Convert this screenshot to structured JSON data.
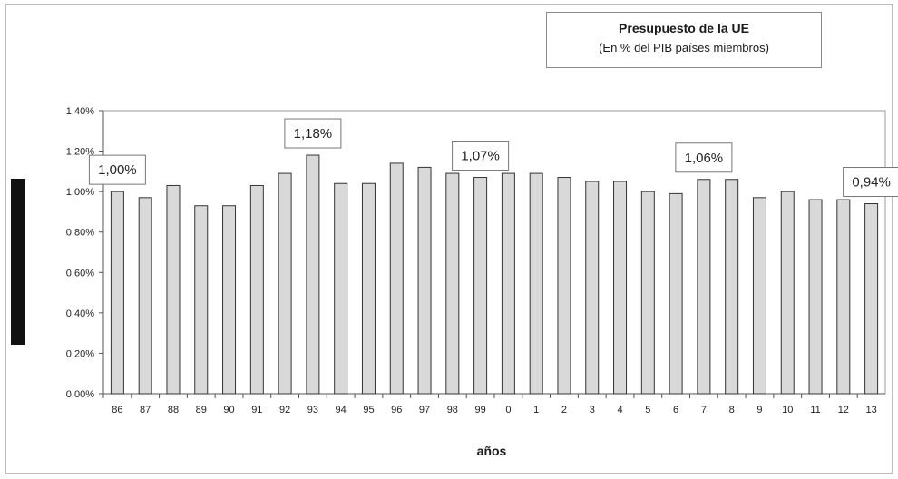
{
  "chart_data": {
    "type": "bar",
    "title": "Presupuesto de la UE",
    "subtitle": "(En % del PIB países miembros)",
    "xlabel": "años",
    "ylabel": "",
    "ylim": [
      0,
      1.4
    ],
    "yticks": [
      "0,00%",
      "0,20%",
      "0,40%",
      "0,60%",
      "0,80%",
      "1,00%",
      "1,20%",
      "1,40%"
    ],
    "grid": false,
    "categories": [
      "86",
      "87",
      "88",
      "89",
      "90",
      "91",
      "92",
      "93",
      "94",
      "95",
      "96",
      "97",
      "98",
      "99",
      "0",
      "1",
      "2",
      "3",
      "4",
      "5",
      "6",
      "7",
      "8",
      "9",
      "10",
      "11",
      "12",
      "13"
    ],
    "values": [
      1.0,
      0.97,
      1.03,
      0.93,
      0.93,
      1.03,
      1.09,
      1.18,
      1.04,
      1.04,
      1.14,
      1.12,
      1.09,
      1.07,
      1.09,
      1.09,
      1.07,
      1.05,
      1.05,
      1.0,
      0.99,
      1.06,
      1.06,
      0.97,
      1.0,
      0.96,
      0.96,
      0.94
    ],
    "annotations": [
      {
        "category": "86",
        "text": "1,00%"
      },
      {
        "category": "93",
        "text": "1,18%"
      },
      {
        "category": "99",
        "text": "1,07%"
      },
      {
        "category": "7",
        "text": "1,06%"
      },
      {
        "category": "13",
        "text": "0,94%"
      }
    ],
    "colors": {
      "bar_fill": "#d9d9d9",
      "bar_stroke": "#333333",
      "axis": "#555555"
    }
  }
}
